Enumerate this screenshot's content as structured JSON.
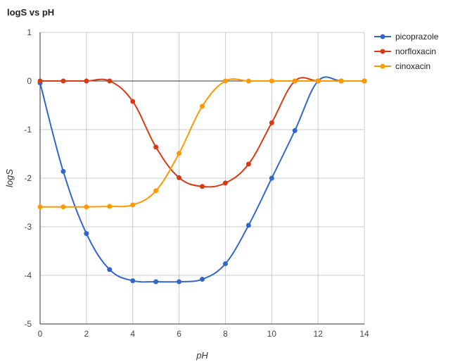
{
  "chart_data": {
    "type": "line",
    "title": "logS vs pH",
    "xlabel": "pH",
    "ylabel": "logS",
    "xlim": [
      0,
      14
    ],
    "ylim": [
      -5,
      1
    ],
    "x_ticks": [
      0,
      2,
      4,
      6,
      8,
      10,
      12,
      14
    ],
    "y_ticks": [
      1,
      0,
      -1,
      -2,
      -3,
      -4,
      -5
    ],
    "grid": true,
    "smooth": true,
    "legend_position": "right",
    "x": [
      0,
      1,
      2,
      3,
      4,
      5,
      6,
      7,
      8,
      9,
      10,
      11,
      12,
      13,
      14
    ],
    "series": [
      {
        "name": "picoprazole",
        "color": "#3366cc",
        "values": [
          -0.04,
          -1.86,
          -3.14,
          -3.88,
          -4.11,
          -4.13,
          -4.13,
          -4.08,
          -3.76,
          -2.97,
          -2.0,
          -1.02,
          0.0,
          0.0,
          0.0
        ]
      },
      {
        "name": "norfloxacin",
        "color": "#dc3912",
        "values": [
          0.0,
          0.0,
          0.0,
          0.0,
          -0.42,
          -1.36,
          -1.99,
          -2.17,
          -2.1,
          -1.71,
          -0.86,
          0.0,
          0.0,
          0.0,
          0.0
        ]
      },
      {
        "name": "cinoxacin",
        "color": "#ff9900",
        "values": [
          -2.59,
          -2.59,
          -2.59,
          -2.58,
          -2.55,
          -2.26,
          -1.49,
          -0.52,
          0.0,
          0.0,
          0.0,
          0.0,
          0.0,
          0.0,
          0.0
        ]
      }
    ],
    "colors": {
      "grid": "#cccccc",
      "zero_line": "#333333",
      "axis": "#333333"
    }
  }
}
